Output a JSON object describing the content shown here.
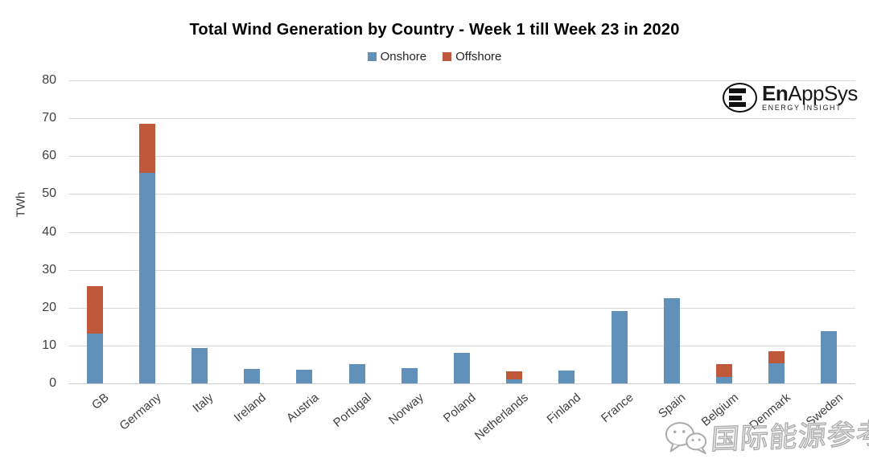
{
  "title": "Total Wind Generation by Country - Week 1 till Week 23 in 2020",
  "legend": {
    "onshore": "Onshore",
    "offshore": "Offshore"
  },
  "colors": {
    "onshore": "#6191BB",
    "offshore": "#C0583C",
    "gridline": "#D9D9D9",
    "axis_text": "#3F3F3F"
  },
  "logo": {
    "brand_bold": "En",
    "brand_rest": "AppSys",
    "tagline": "ENERGY INSIGHT",
    "icon": "enappsys-e-circle-icon"
  },
  "watermark": {
    "text": "国际能源参考",
    "icon": "wechat-icon"
  },
  "chart_data": {
    "type": "bar",
    "stacked": true,
    "title": "Total Wind Generation by Country - Week 1 till Week 23 in 2020",
    "xlabel": "",
    "ylabel": "TWh",
    "ylim": [
      0,
      80
    ],
    "yticks": [
      0,
      10,
      20,
      30,
      40,
      50,
      60,
      70,
      80
    ],
    "grid": true,
    "legend_position": "top",
    "categories": [
      "GB",
      "Germany",
      "Italy",
      "Ireland",
      "Austria",
      "Portugal",
      "Norway",
      "Poland",
      "Netherlands",
      "Finland",
      "France",
      "Spain",
      "Belgium",
      "Denmark",
      "Sweden"
    ],
    "series": [
      {
        "name": "Onshore",
        "color": "#6191BB",
        "values": [
          13.2,
          55.6,
          9.4,
          3.9,
          3.7,
          5.1,
          4.1,
          8.0,
          1.1,
          3.5,
          19.0,
          22.4,
          1.8,
          5.4,
          13.7
        ]
      },
      {
        "name": "Offshore",
        "color": "#C0583C",
        "values": [
          12.4,
          12.9,
          0,
          0,
          0,
          0,
          0,
          0,
          2.1,
          0,
          0,
          0,
          3.2,
          3.1,
          0
        ]
      }
    ]
  }
}
